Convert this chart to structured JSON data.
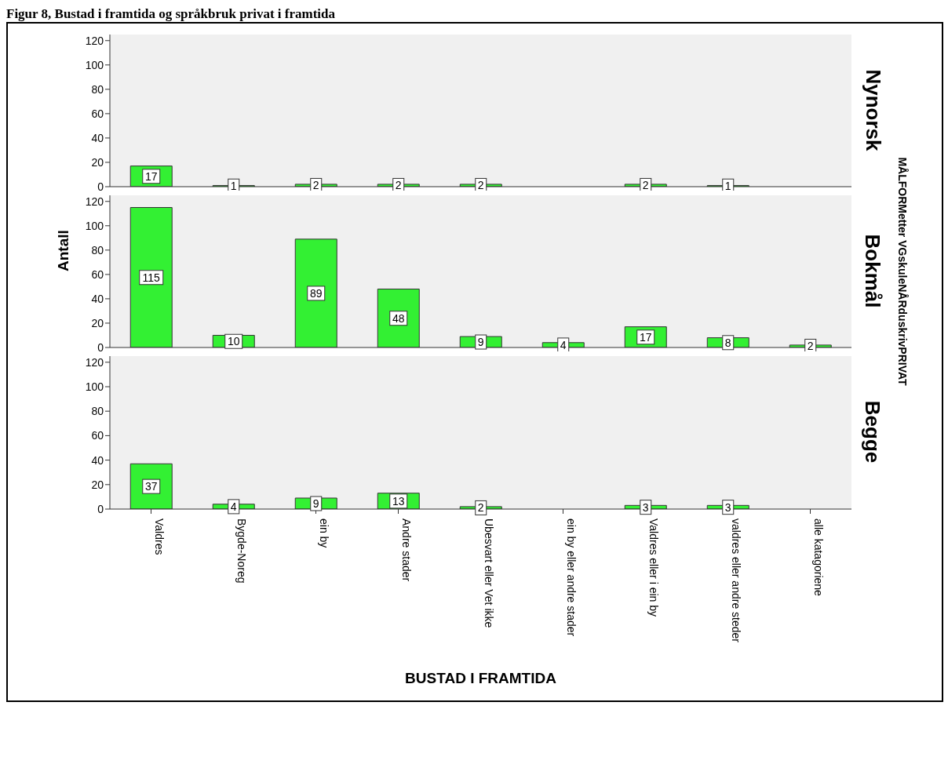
{
  "chart_data": [
    {
      "type": "bar",
      "title": "Figur 8, Bustad i framtida og språkbruk privat i framtida",
      "subtitle": "Nynorsk",
      "categories": [
        null,
        null,
        null,
        null,
        null,
        null,
        null,
        null,
        null
      ],
      "values": [
        17,
        1,
        2,
        2,
        2,
        null,
        2,
        1,
        null
      ],
      "color": "#33f033",
      "ylim": [
        0,
        125
      ],
      "yticks": [
        0,
        20,
        40,
        60,
        80,
        100,
        120
      ],
      "data_labels": true,
      "tick_labels": "y"
    },
    {
      "type": "bar",
      "subtitle": "Bokmål",
      "ylabel": "Antall",
      "annotations": [
        "MÅLFORMetter VGskuleNÅRduskrivPRIVAT"
      ],
      "categories": [
        null,
        null,
        null,
        null,
        null,
        null,
        null,
        null,
        null
      ],
      "values": [
        115,
        10,
        89,
        48,
        9,
        4,
        17,
        8,
        2
      ],
      "color": "#33f033",
      "ylim": [
        0,
        125
      ],
      "yticks": [
        0,
        20,
        40,
        60,
        80,
        100,
        120
      ],
      "data_labels": true,
      "tick_labels": "y"
    },
    {
      "type": "bar",
      "subtitle": "Begge",
      "xlabel": "BUSTAD I FRAMTIDA",
      "categories": [
        "Valdres",
        "Bygde-Noreg",
        "ein by",
        "Andre stader",
        "Ubesvart eller Vet ikke",
        "ein by eller andre stader",
        "Valdres eller i ein by",
        "valdres eller andre steder",
        "alle katagoriene"
      ],
      "values": [
        37,
        4,
        9,
        13,
        2,
        null,
        3,
        3,
        null
      ],
      "color": "#33f033",
      "ylim": [
        0,
        125
      ],
      "yticks": [
        0,
        20,
        40,
        60,
        80,
        100,
        120
      ],
      "data_labels": true
    }
  ]
}
